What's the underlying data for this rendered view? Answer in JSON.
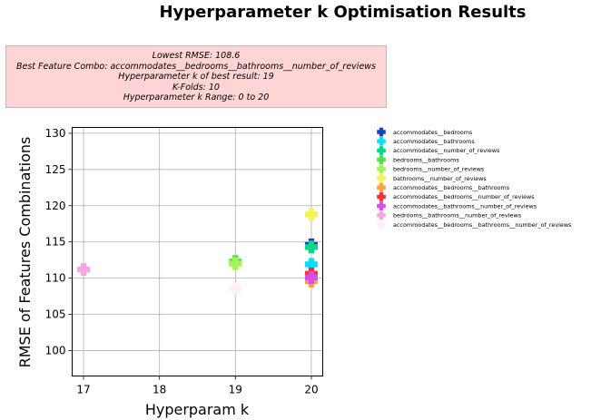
{
  "chart_data": {
    "type": "scatter",
    "title": "Hyperparameter k Optimisation Results",
    "xlabel": "Hyperparam k",
    "ylabel": "RMSE of Features Combinations",
    "xlim": [
      16.85,
      20.15
    ],
    "ylim": [
      96.5,
      130.8
    ],
    "x_ticks": [
      17,
      18,
      19,
      20
    ],
    "y_ticks": [
      100,
      105,
      110,
      115,
      120,
      125,
      130
    ],
    "grid": true,
    "legend_position": "right",
    "summary_lines": [
      "Lowest RMSE: 108.6",
      "Best Feature Combo: accommodates__bedrooms__bathrooms__number_of_reviews",
      "Hyperparameter k of best result: 19",
      "K-Folds: 10",
      "Hyperparameter k Range: 0 to 20"
    ],
    "series": [
      {
        "name": "accommodates__bedrooms",
        "color": "#1f3fbf",
        "points": [
          [
            20,
            114.6
          ]
        ]
      },
      {
        "name": "accommodates__bathrooms",
        "color": "#00e1ff",
        "points": [
          [
            20,
            111.9
          ]
        ]
      },
      {
        "name": "accommodates__number_of_reviews",
        "color": "#00d98a",
        "points": [
          [
            20,
            114.3
          ]
        ]
      },
      {
        "name": "bedrooms__bathrooms",
        "color": "#52e04a",
        "points": [
          [
            19,
            112.3
          ]
        ]
      },
      {
        "name": "bedrooms__number_of_reviews",
        "color": "#a6f25a",
        "points": [
          [
            19,
            112.0
          ]
        ]
      },
      {
        "name": "bathrooms__number_of_reviews",
        "color": "#f4f45a",
        "points": [
          [
            20,
            118.8
          ]
        ]
      },
      {
        "name": "accommodates__bedrooms__bathrooms",
        "color": "#ffa040",
        "points": [
          [
            20,
            109.6
          ]
        ]
      },
      {
        "name": "accommodates__bedrooms__number_of_reviews",
        "color": "#ff3030",
        "points": [
          [
            20,
            110.6
          ]
        ]
      },
      {
        "name": "accommodates__bathrooms__number_of_reviews",
        "color": "#d94cf0",
        "points": [
          [
            20,
            110.1
          ]
        ]
      },
      {
        "name": "bedrooms__bathrooms__number_of_reviews",
        "color": "#f4a6e6",
        "points": [
          [
            17,
            111.2
          ]
        ]
      },
      {
        "name": "accommodates__bedrooms__bathrooms__number_of_reviews",
        "color": "#fdf0fb",
        "points": [
          [
            19,
            108.6
          ]
        ]
      }
    ]
  }
}
